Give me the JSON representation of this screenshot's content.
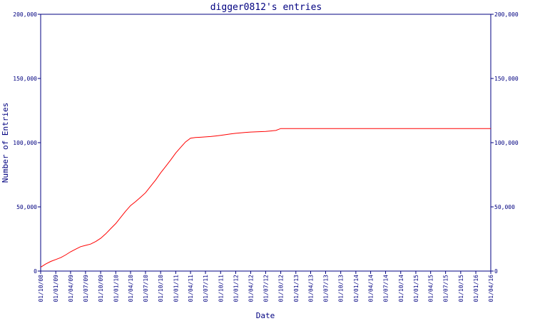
{
  "chart_data": {
    "type": "line",
    "title": "digger0812's entries",
    "xlabel": "Date",
    "ylabel": "Number of Entries",
    "ylim": [
      0,
      200000
    ],
    "y_ticks": [
      {
        "value": 0,
        "label": "0"
      },
      {
        "value": 50000,
        "label": "50,000"
      },
      {
        "value": 100000,
        "label": "100,000"
      },
      {
        "value": 150000,
        "label": "150,000"
      },
      {
        "value": 200000,
        "label": "200,000"
      }
    ],
    "x_ticks": [
      "01/10/08",
      "01/01/09",
      "01/04/09",
      "01/07/09",
      "01/10/09",
      "01/01/10",
      "01/04/10",
      "01/07/10",
      "01/10/10",
      "01/01/11",
      "01/04/11",
      "01/07/11",
      "01/10/11",
      "01/01/12",
      "01/04/12",
      "01/07/12",
      "01/10/12",
      "01/01/13",
      "01/04/13",
      "01/07/13",
      "01/10/13",
      "01/01/14",
      "01/04/14",
      "01/07/14",
      "01/10/14",
      "01/01/15",
      "01/04/15",
      "01/07/15",
      "01/10/15",
      "01/01/16",
      "01/04/16"
    ],
    "grid": false,
    "line_color": "#ff0000",
    "axis_color": "#000080",
    "series": [
      {
        "x": [
          "01/10/08",
          "01/11/08",
          "01/12/08",
          "01/01/09",
          "01/02/09",
          "01/03/09",
          "01/04/09",
          "01/05/09",
          "01/06/09",
          "01/07/09",
          "01/08/09",
          "01/09/09",
          "01/10/09",
          "01/11/09",
          "01/12/09",
          "01/01/10",
          "01/02/10",
          "01/03/10",
          "01/04/10",
          "01/05/10",
          "01/06/10",
          "01/07/10",
          "01/08/10",
          "01/09/10",
          "01/10/10",
          "01/11/10",
          "01/12/10",
          "01/01/11",
          "01/02/11",
          "01/03/11",
          "01/04/11",
          "01/05/11",
          "01/06/11",
          "01/07/11",
          "01/08/11",
          "01/09/11",
          "01/10/11",
          "01/11/11",
          "01/12/11",
          "01/01/12",
          "01/03/12",
          "01/04/12",
          "01/07/12",
          "01/09/12",
          "01/10/12",
          "01/12/12",
          "01/01/13",
          "01/04/13",
          "01/07/13",
          "01/10/13",
          "01/01/14",
          "01/04/14",
          "01/07/14",
          "01/10/14",
          "01/01/15",
          "01/04/15",
          "01/07/15",
          "01/10/15",
          "01/01/16",
          "01/04/16"
        ],
        "values": [
          3000,
          5500,
          7500,
          9000,
          10500,
          12500,
          15000,
          17000,
          19000,
          20000,
          21000,
          23000,
          25500,
          29000,
          33000,
          37000,
          42000,
          46500,
          51000,
          54000,
          57500,
          61000,
          66000,
          71000,
          76500,
          81500,
          86500,
          92000,
          96500,
          100500,
          103500,
          104000,
          104200,
          104500,
          104800,
          105200,
          105700,
          106300,
          106800,
          107300,
          108000,
          108300,
          108800,
          109500,
          111000,
          111000,
          111000,
          111000,
          111000,
          111000,
          111000,
          111000,
          111000,
          111000,
          111000,
          111000,
          111000,
          111000,
          111000,
          111000
        ]
      }
    ]
  }
}
